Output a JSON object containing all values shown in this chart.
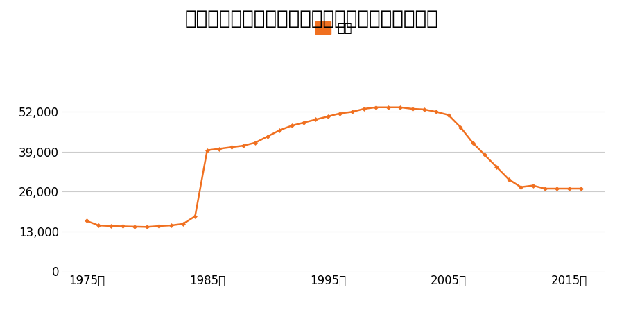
{
  "title": "宮城県宮城郡松島町磯崎字磯崎５２番の地価推移",
  "legend_label": "価格",
  "line_color": "#f07020",
  "marker_color": "#f07020",
  "background_color": "#ffffff",
  "grid_color": "#cccccc",
  "ylim": [
    0,
    60000
  ],
  "yticks": [
    0,
    13000,
    26000,
    39000,
    52000
  ],
  "xticks": [
    1975,
    1985,
    1995,
    2005,
    2015
  ],
  "xlim": [
    1973,
    2018
  ],
  "years": [
    1975,
    1976,
    1977,
    1978,
    1979,
    1980,
    1981,
    1982,
    1983,
    1984,
    1985,
    1986,
    1987,
    1988,
    1989,
    1990,
    1991,
    1992,
    1993,
    1994,
    1995,
    1996,
    1997,
    1998,
    1999,
    2000,
    2001,
    2002,
    2003,
    2004,
    2005,
    2006,
    2007,
    2008,
    2009,
    2010,
    2011,
    2012,
    2013,
    2014,
    2015,
    2016
  ],
  "values": [
    16500,
    15000,
    14800,
    14700,
    14600,
    14500,
    14800,
    15000,
    15500,
    18000,
    39500,
    40000,
    40500,
    41000,
    42000,
    44000,
    46000,
    47500,
    48500,
    49500,
    50500,
    51500,
    52000,
    53000,
    53500,
    53500,
    53500,
    53000,
    52800,
    52000,
    51000,
    47000,
    42000,
    38000,
    34000,
    30000,
    27500,
    28000,
    27000,
    27000,
    27000,
    27000
  ],
  "title_fontsize": 20,
  "legend_fontsize": 13,
  "tick_fontsize": 12
}
